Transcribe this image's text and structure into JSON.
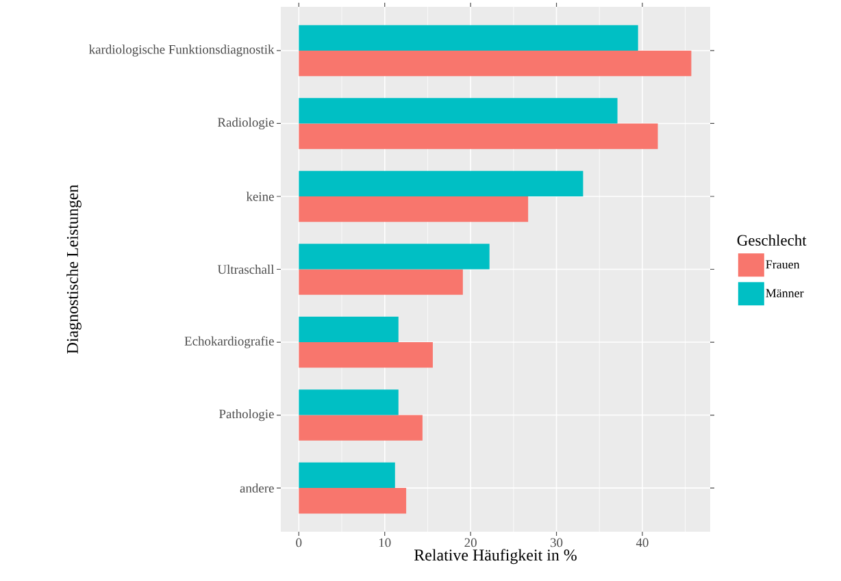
{
  "chart_data": {
    "type": "bar",
    "orientation": "horizontal",
    "xlabel": "Relative Häufigkeit in %",
    "ylabel": "Diagnostische Leistungen",
    "legend_title": "Geschlecht",
    "legend": "right",
    "grid": true,
    "categories": [
      "kardiologische Funktionsdiagnostik",
      "Radiologie",
      "keine",
      "Ultraschall",
      "Echokardiografie",
      "Pathologie",
      "andere"
    ],
    "series": [
      {
        "name": "Frauen",
        "color": "#f8766d",
        "values": [
          45.7,
          41.8,
          26.7,
          19.1,
          15.6,
          14.4,
          12.5
        ]
      },
      {
        "name": "Männer",
        "color": "#00bfc4",
        "values": [
          39.5,
          37.1,
          33.1,
          22.2,
          11.6,
          11.6,
          11.2
        ]
      }
    ],
    "xlim": [
      -2.1,
      47.9
    ],
    "xticks": [
      0,
      10,
      20,
      30,
      40
    ]
  }
}
